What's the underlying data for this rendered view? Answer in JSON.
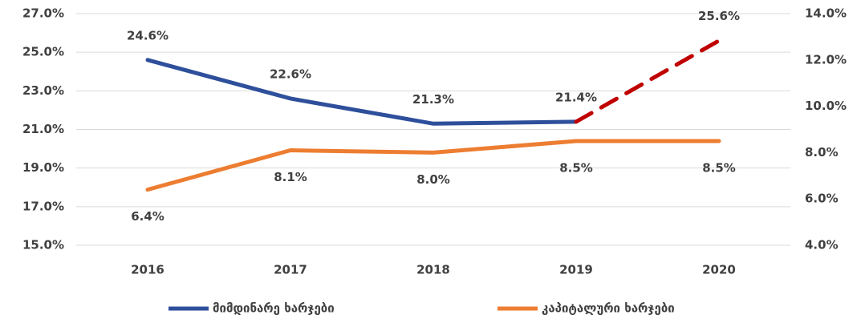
{
  "chart_data": {
    "type": "line",
    "categories": [
      "2016",
      "2017",
      "2018",
      "2019",
      "2020"
    ],
    "series": [
      {
        "name": "მიმდინარე ხარჯები",
        "color": "#2e4f9b",
        "axis": "y",
        "values": [
          24.6,
          22.6,
          21.3,
          21.4,
          25.6
        ],
        "value_labels": [
          "24.6%",
          "22.6%",
          "21.3%",
          "21.4%",
          "25.6%"
        ],
        "segments": [
          {
            "from": 0,
            "to": 3,
            "color": "#2e4f9b",
            "dashed": false
          },
          {
            "from": 3,
            "to": 4,
            "color": "#c00000",
            "dashed": true
          }
        ]
      },
      {
        "name": "კაპიტალური ხარჯები",
        "color": "#ed7d31",
        "axis": "y2",
        "values": [
          6.4,
          8.1,
          8.0,
          8.5,
          8.5
        ],
        "value_labels": [
          "6.4%",
          "8.1%",
          "8.0%",
          "8.5%",
          "8.5%"
        ]
      }
    ],
    "ylim": [
      15,
      27
    ],
    "yticks": [
      {
        "value": 15,
        "label": "15.0%"
      },
      {
        "value": 17,
        "label": "17.0%"
      },
      {
        "value": 19,
        "label": "19.0%"
      },
      {
        "value": 21,
        "label": "21.0%"
      },
      {
        "value": 23,
        "label": "23.0%"
      },
      {
        "value": 25,
        "label": "25.0%"
      },
      {
        "value": 27,
        "label": "27.0%"
      }
    ],
    "y2lim": [
      4,
      14
    ],
    "y2ticks": [
      {
        "value": 4,
        "label": "4.0%"
      },
      {
        "value": 6,
        "label": "6.0%"
      },
      {
        "value": 8,
        "label": "8.0%"
      },
      {
        "value": 10,
        "label": "10.0%"
      },
      {
        "value": 12,
        "label": "12.0%"
      },
      {
        "value": 14,
        "label": "14.0%"
      }
    ],
    "grid": true,
    "legend": "bottom"
  }
}
